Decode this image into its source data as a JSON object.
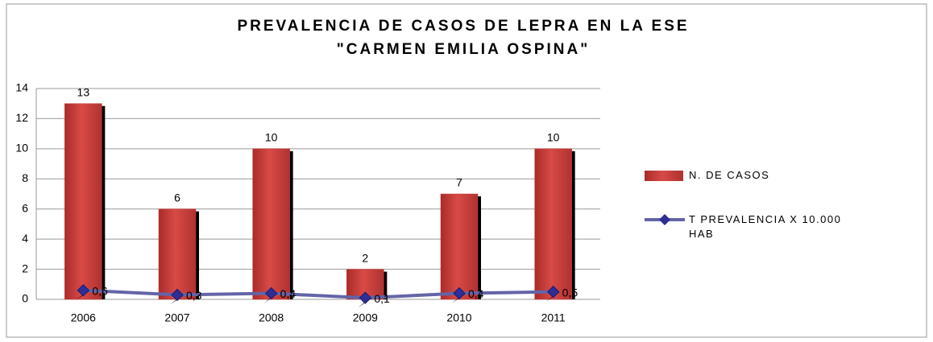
{
  "chart_data": {
    "type": "combo",
    "title": [
      "PREVALENCIA DE CASOS DE LEPRA EN LA ESE",
      "\"CARMEN EMILIA OSPINA\""
    ],
    "categories": [
      "2006",
      "2007",
      "2008",
      "2009",
      "2010",
      "2011"
    ],
    "series": [
      {
        "name": "N. DE CASOS",
        "type": "bar",
        "color": "#c83a38",
        "values": [
          13,
          6,
          10,
          2,
          7,
          10
        ]
      },
      {
        "name": "T PREVALENCIA X 10.000 HAB",
        "type": "line",
        "color": "#6464a8",
        "marker_color": "#2e2e96",
        "values": [
          0.6,
          0.3,
          0.4,
          0.1,
          0.4,
          0.5
        ],
        "value_labels": [
          "0,6",
          "0,3",
          "0,4",
          "0,1",
          "0,4",
          "0,5"
        ]
      }
    ],
    "ylim": [
      0,
      14
    ],
    "yticks": [
      0,
      2,
      4,
      6,
      8,
      10,
      12,
      14
    ],
    "grid": true,
    "legend": "right"
  }
}
